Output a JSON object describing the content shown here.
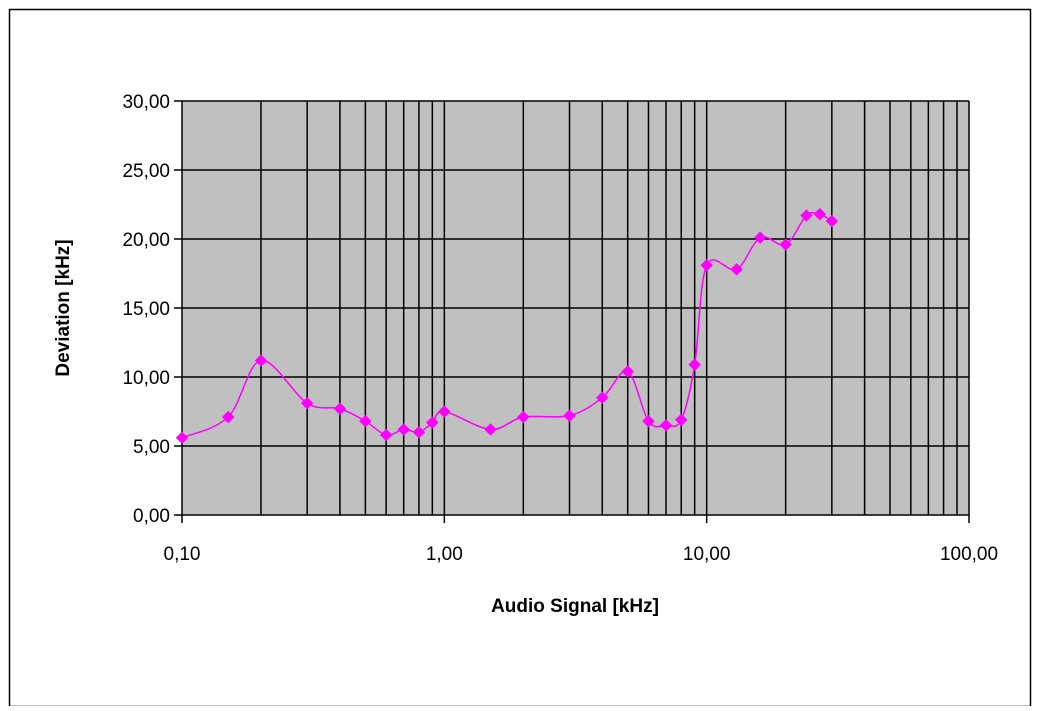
{
  "chart_data": {
    "type": "line",
    "xlabel": "Audio Signal [kHz]",
    "ylabel": "Deviation [kHz]",
    "x_scale": "log",
    "xlim": [
      0.1,
      100
    ],
    "ylim": [
      0,
      30
    ],
    "x_tick_labels": [
      "0,10",
      "1,00",
      "10,00",
      "100,00"
    ],
    "x_ticks": [
      0.1,
      1,
      10,
      100
    ],
    "y_tick_labels": [
      "0,00",
      "5,00",
      "10,00",
      "15,00",
      "20,00",
      "25,00",
      "30,00"
    ],
    "y_ticks": [
      0,
      5,
      10,
      15,
      20,
      25,
      30
    ],
    "grid": true,
    "legend": "none",
    "colors": {
      "series": "#ff00ff",
      "plot_background": "#c0c0c0",
      "grid": "#000000",
      "page_background": "#ffffff"
    },
    "series": [
      {
        "x": [
          0.1,
          0.15,
          0.2,
          0.3,
          0.4,
          0.5,
          0.6,
          0.7,
          0.8,
          0.9,
          1.0,
          1.5,
          2.0,
          3.0,
          4.0,
          5.0,
          6.0,
          7.0,
          8.0,
          9.0,
          10.0,
          13.0,
          16.0,
          20.0,
          24.0,
          27.0,
          30.0
        ],
        "y": [
          5.6,
          7.1,
          11.2,
          8.1,
          7.7,
          6.8,
          5.8,
          6.2,
          6.0,
          6.7,
          7.5,
          6.2,
          7.1,
          7.2,
          8.5,
          10.4,
          6.8,
          6.5,
          6.9,
          10.9,
          18.1,
          17.8,
          20.1,
          19.6,
          21.7,
          21.8,
          21.3
        ]
      }
    ]
  }
}
